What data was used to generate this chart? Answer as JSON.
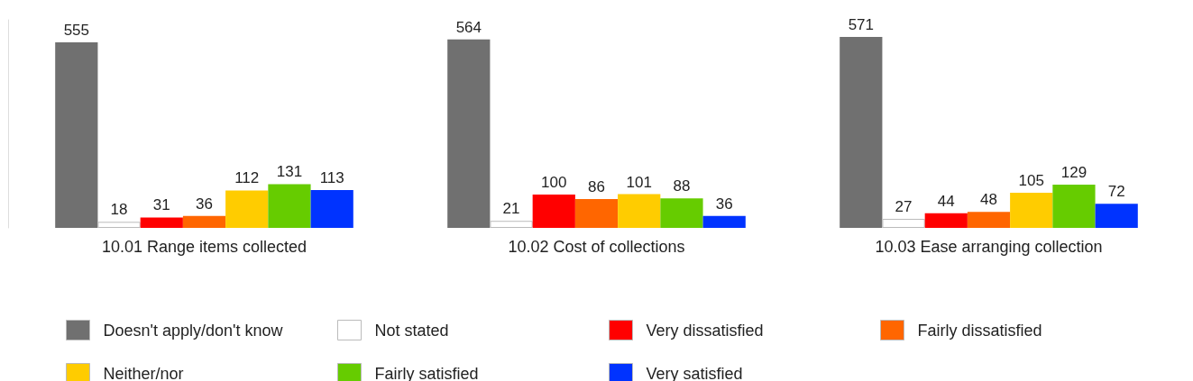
{
  "chart_data": {
    "type": "bar",
    "categories": [
      "10.01 Range items collected",
      "10.02 Cost of collections",
      "10.03 Ease arranging collection"
    ],
    "series": [
      {
        "name": "Doesn't apply/don't know",
        "color": "#707070",
        "values": [
          555,
          564,
          571
        ]
      },
      {
        "name": "Not stated",
        "color": "#ffffff",
        "values": [
          18,
          21,
          27
        ]
      },
      {
        "name": "Very dissatisfied",
        "color": "#ff0000",
        "values": [
          31,
          100,
          44
        ]
      },
      {
        "name": "Fairly dissatisfied",
        "color": "#ff6600",
        "values": [
          36,
          86,
          48
        ]
      },
      {
        "name": "Neither/nor",
        "color": "#ffcc00",
        "values": [
          112,
          101,
          105
        ]
      },
      {
        "name": "Fairly satisfied",
        "color": "#66cc00",
        "values": [
          131,
          88,
          129
        ]
      },
      {
        "name": "Very satisfied",
        "color": "#0033ff",
        "values": [
          113,
          36,
          72
        ]
      }
    ],
    "data_labels": true,
    "legend": "bottom",
    "grid": false
  }
}
